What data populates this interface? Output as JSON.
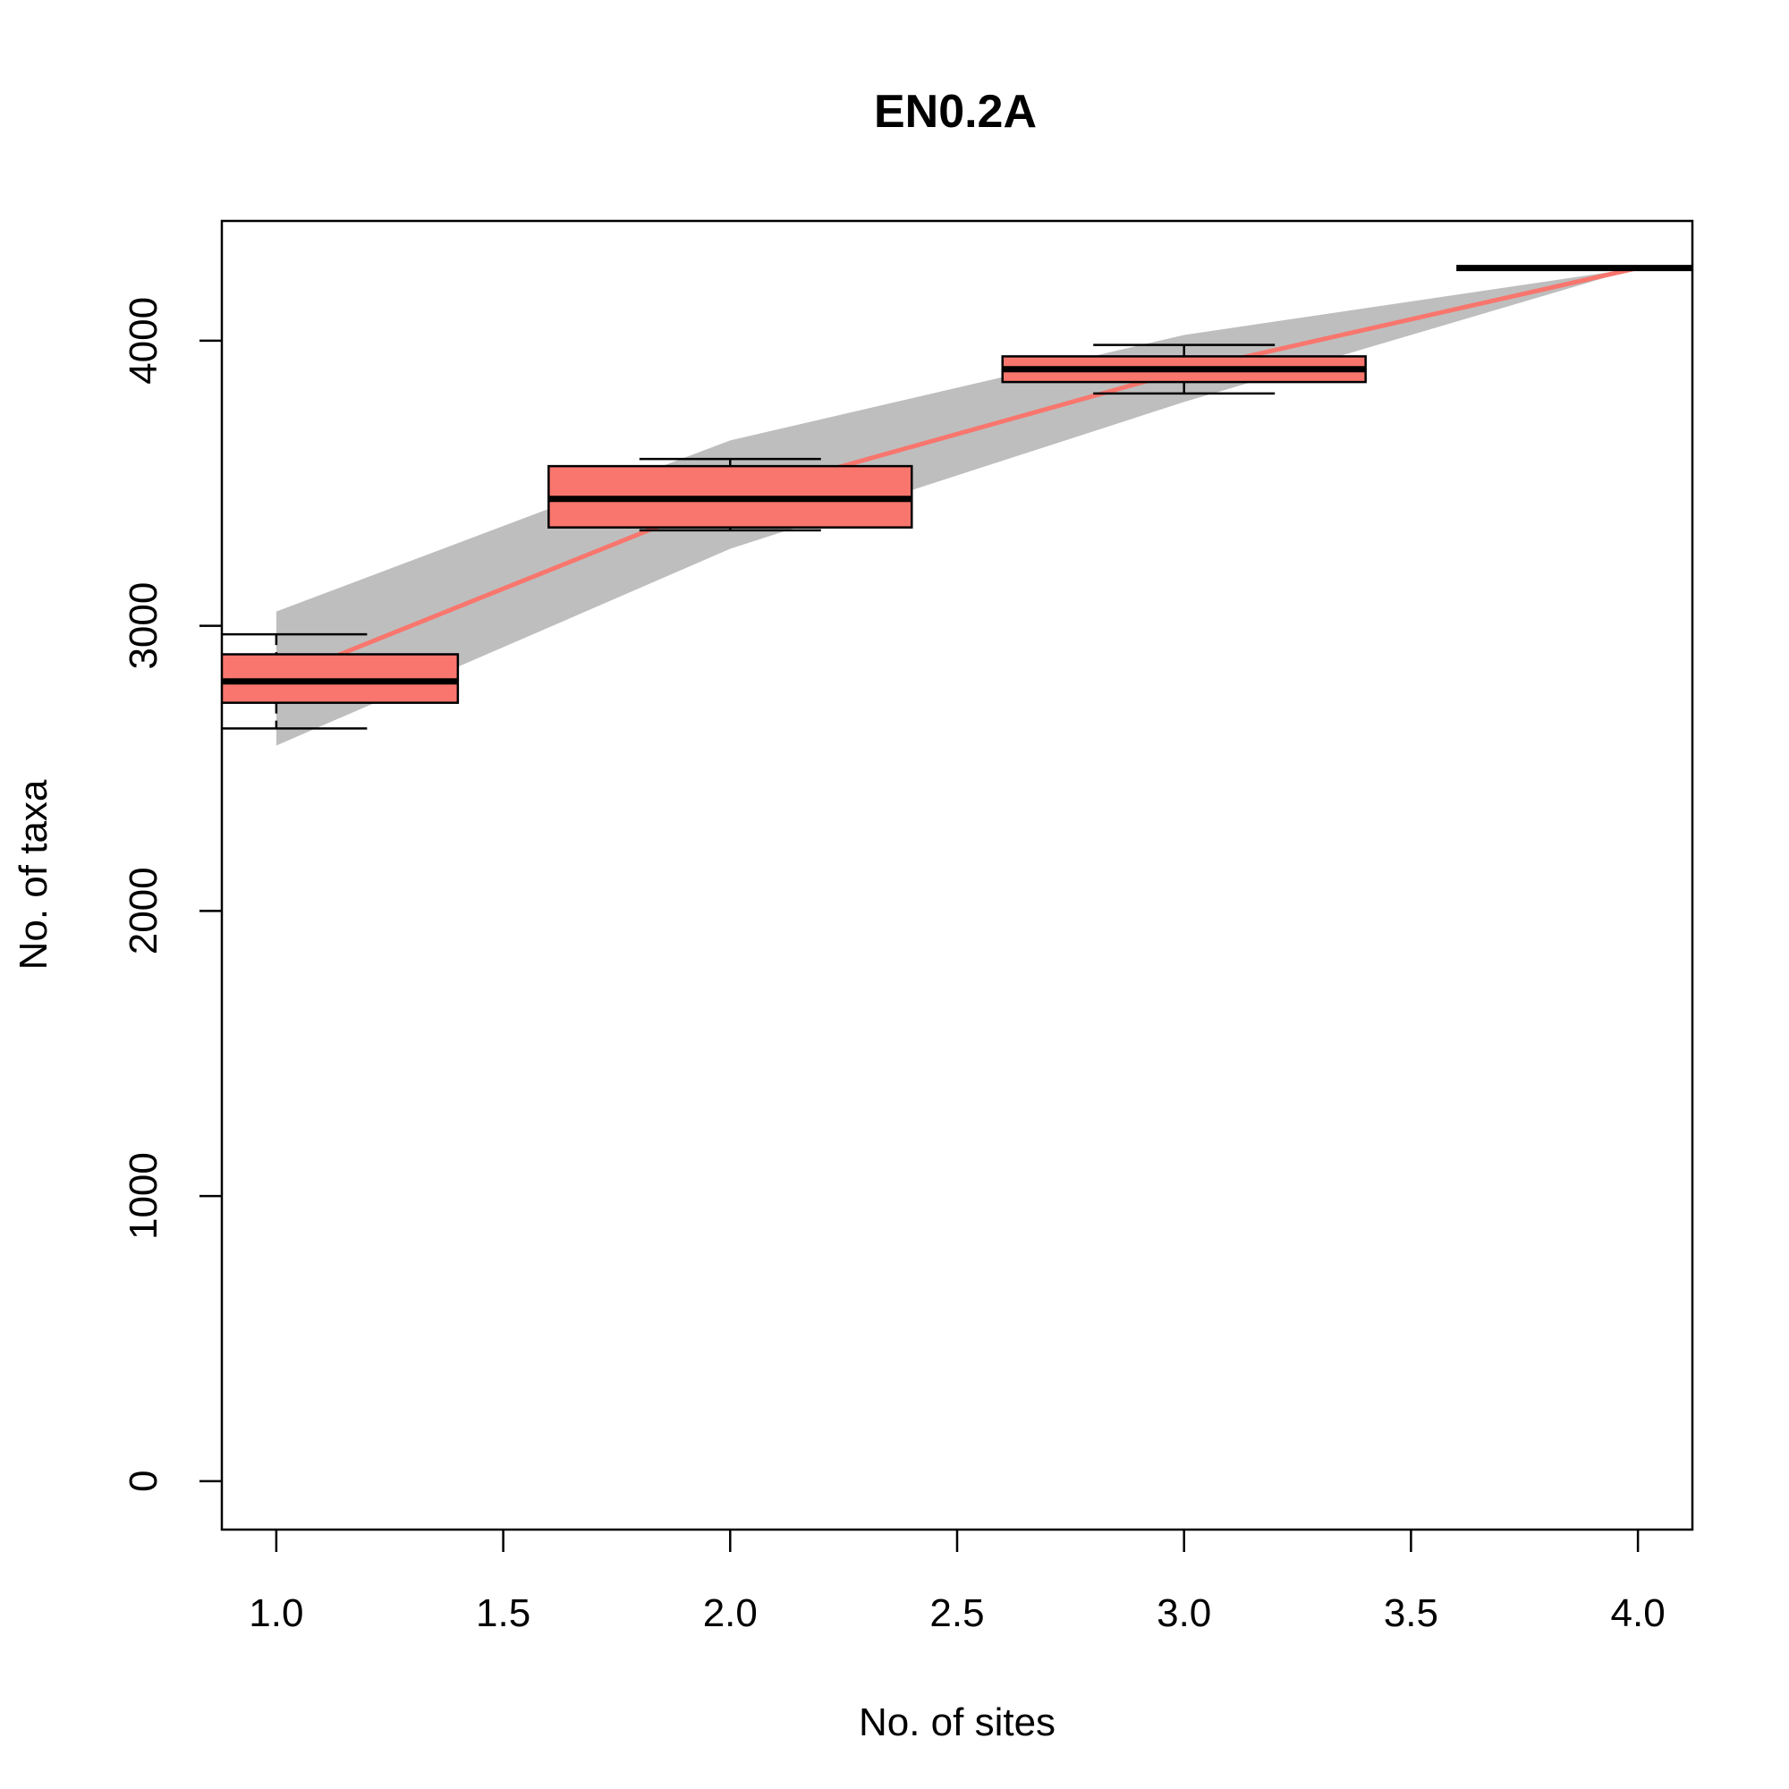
{
  "chart_data": {
    "type": "box",
    "title": "EN0.2A",
    "xlabel": "No. of sites",
    "ylabel": "No. of taxa",
    "xlim": [
      0.88,
      4.12
    ],
    "ylim": [
      -170,
      4420
    ],
    "xticks": [
      "1.0",
      "1.5",
      "2.0",
      "2.5",
      "3.0",
      "3.5",
      "4.0"
    ],
    "yticks": [
      "0",
      "1000",
      "2000",
      "3000",
      "4000"
    ],
    "grid": false,
    "legend": "none",
    "colors": {
      "box_fill": "#F8766D",
      "mean_line": "#F8766D",
      "ci_band": "#BEBEBE",
      "outline": "#000000"
    },
    "boxes": [
      {
        "x": 1,
        "whisker_low": 2640,
        "q1": 2730,
        "median": 2805,
        "q3": 2900,
        "whisker_high": 2970
      },
      {
        "x": 2,
        "whisker_low": 3335,
        "q1": 3345,
        "median": 3445,
        "q3": 3560,
        "whisker_high": 3585
      },
      {
        "x": 3,
        "whisker_low": 3815,
        "q1": 3855,
        "median": 3900,
        "q3": 3945,
        "whisker_high": 3985
      },
      {
        "x": 4,
        "whisker_low": 4255,
        "q1": 4255,
        "median": 4255,
        "q3": 4255,
        "whisker_high": 4255
      }
    ],
    "mean_curve": {
      "x": [
        1,
        2,
        3,
        4
      ],
      "y": [
        2810,
        3450,
        3895,
        4255
      ]
    },
    "ci_band": {
      "x": [
        1,
        2,
        3,
        4
      ],
      "upper": [
        3050,
        3650,
        4020,
        4255
      ],
      "lower": [
        2580,
        3270,
        3785,
        4255
      ]
    }
  }
}
